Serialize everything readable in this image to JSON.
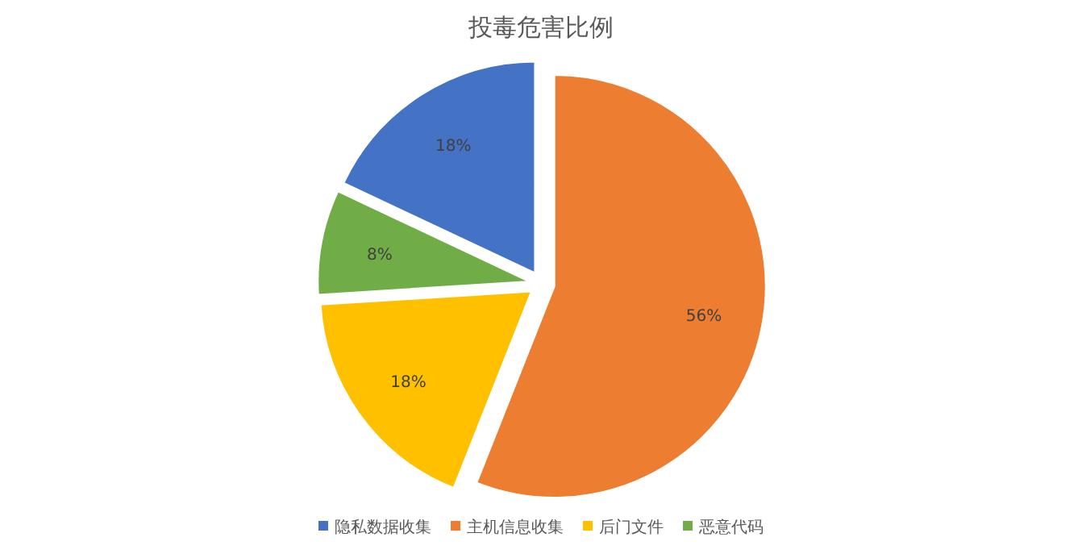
{
  "chart_data": {
    "type": "pie",
    "title": "投毒危害比例",
    "categories": [
      "隐私数据收集",
      "主机信息收集",
      "后门文件",
      "恶意代码"
    ],
    "values": [
      18,
      56,
      18,
      8
    ],
    "colors": [
      "#4472c4",
      "#ed7d31",
      "#ffc000",
      "#70ad47"
    ],
    "value_labels": [
      "18%",
      "56%",
      "18%",
      "8%"
    ],
    "legend": "bottom"
  }
}
